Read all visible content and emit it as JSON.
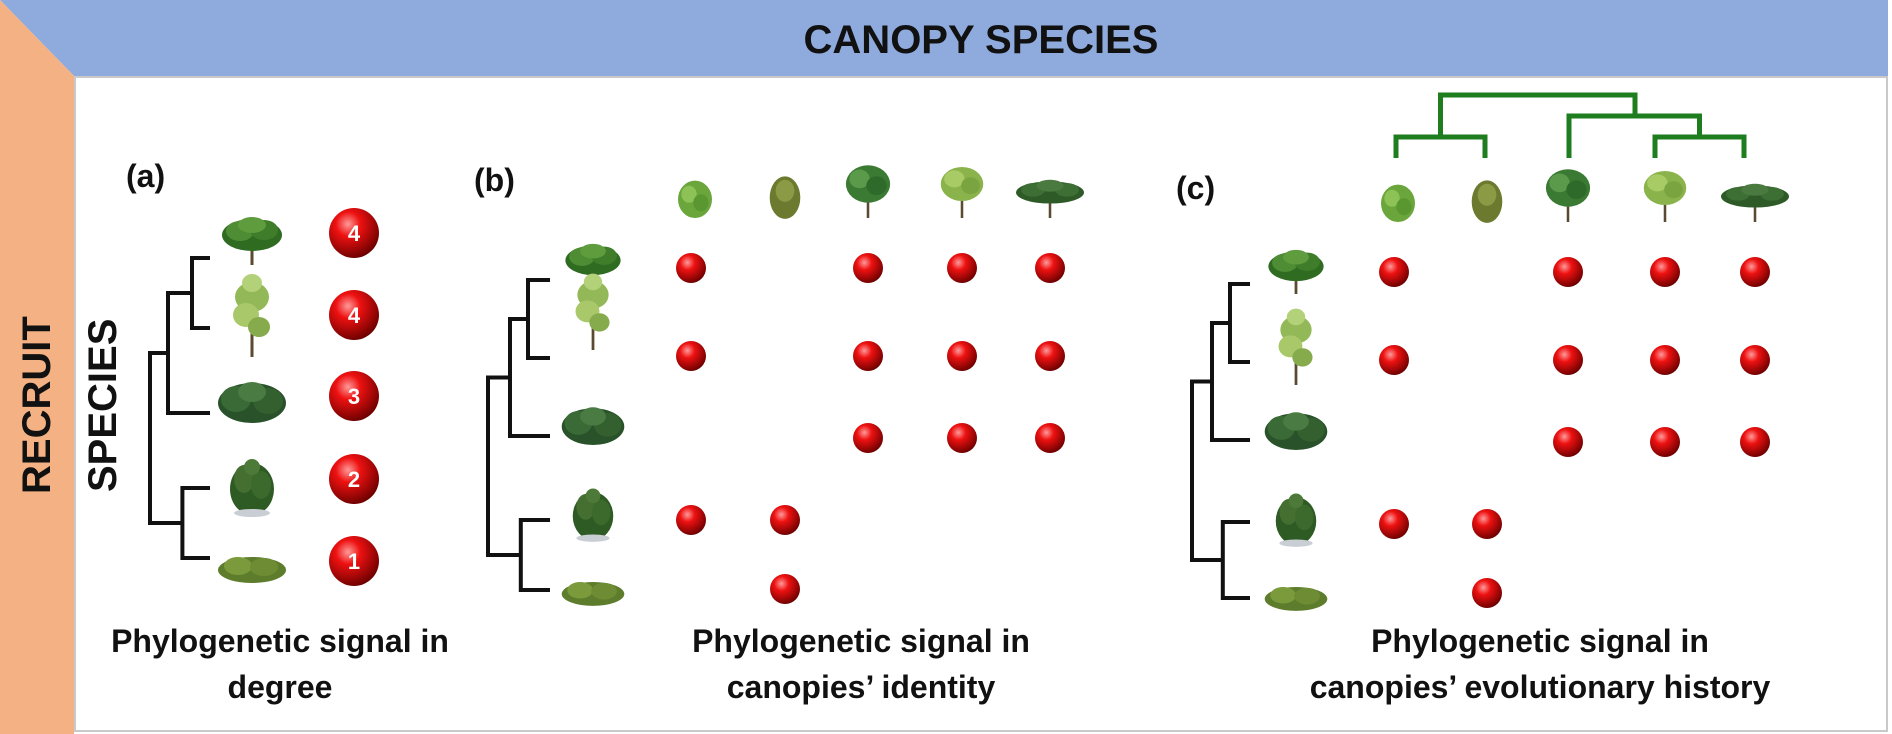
{
  "header": {
    "title": "CANOPY SPECIES"
  },
  "side": {
    "title": "RECRUIT SPECIES"
  },
  "colors": {
    "top_band": "#8faadc",
    "side_band": "#f4b183",
    "tree_lines": "#111111",
    "canopy_tree_lines": "#1e7d1e",
    "dot_red": "#cc0000"
  },
  "panels": [
    {
      "label": "(a)",
      "caption_lines": [
        "Phylogenetic signal in",
        "degree"
      ],
      "recruits": [
        "round-tree-icon",
        "sparse-tree-icon",
        "bush-icon",
        "shrub-icon",
        "low-shrub-icon"
      ],
      "degree_values": [
        "4",
        "4",
        "3",
        "2",
        "1"
      ]
    },
    {
      "label": "(b)",
      "caption_lines": [
        "Phylogenetic signal in",
        "canopies’ identity"
      ],
      "canopies": [
        "small-bush-icon",
        "conical-bush-icon",
        "broad-tree-icon",
        "light-tree-icon",
        "wide-tree-icon"
      ],
      "recruits": [
        "round-tree-icon",
        "sparse-tree-icon",
        "bush-icon",
        "shrub-icon",
        "low-shrub-icon"
      ],
      "interaction_matrix": [
        [
          1,
          0,
          1,
          1,
          1
        ],
        [
          1,
          0,
          1,
          1,
          1
        ],
        [
          0,
          0,
          1,
          1,
          1
        ],
        [
          1,
          1,
          0,
          0,
          0
        ],
        [
          0,
          1,
          0,
          0,
          0
        ]
      ]
    },
    {
      "label": "(c)",
      "caption_lines": [
        "Phylogenetic signal in",
        "canopies’ evolutionary history"
      ],
      "canopies": [
        "small-bush-icon",
        "conical-bush-icon",
        "broad-tree-icon",
        "light-tree-icon",
        "wide-tree-icon"
      ],
      "recruits": [
        "round-tree-icon",
        "sparse-tree-icon",
        "bush-icon",
        "shrub-icon",
        "low-shrub-icon"
      ],
      "interaction_matrix": [
        [
          1,
          0,
          1,
          1,
          1
        ],
        [
          1,
          0,
          1,
          1,
          1
        ],
        [
          0,
          0,
          1,
          1,
          1
        ],
        [
          1,
          1,
          0,
          0,
          0
        ],
        [
          0,
          1,
          0,
          0,
          0
        ]
      ]
    }
  ]
}
